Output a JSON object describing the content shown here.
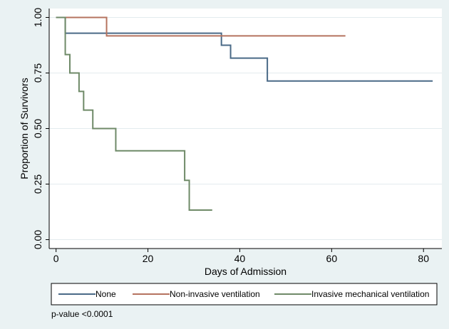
{
  "chart_data": {
    "type": "line",
    "step": true,
    "xlabel": "Days of Admission",
    "ylabel": "Proportion of Survivors",
    "xlim": [
      0,
      82
    ],
    "ylim": [
      0,
      1
    ],
    "x_ticks": [
      0,
      20,
      40,
      60,
      80
    ],
    "x_tick_labels": [
      "0",
      "20",
      "40",
      "60",
      "80"
    ],
    "y_ticks": [
      0,
      0.25,
      0.5,
      0.75,
      1
    ],
    "y_tick_labels": [
      "0.00",
      "0.25",
      "0.50",
      "0.75",
      "1.00"
    ],
    "grid": "horizontal",
    "legend_position": "bottom",
    "series": [
      {
        "name": "None",
        "color": "#4a6a87",
        "x": [
          0,
          2,
          36,
          38,
          46,
          82
        ],
        "y": [
          1,
          0.929,
          0.875,
          0.817,
          0.714,
          0.714
        ]
      },
      {
        "name": "Non-invasive ventilation",
        "color": "#b5735f",
        "x": [
          0,
          11,
          63
        ],
        "y": [
          1,
          0.917,
          0.917
        ]
      },
      {
        "name": "Invasive mechanical ventilation",
        "color": "#6f8a68",
        "x": [
          0,
          2,
          3,
          5,
          6,
          8,
          13,
          28,
          29,
          34
        ],
        "y": [
          1,
          0.833,
          0.75,
          0.667,
          0.583,
          0.5,
          0.4,
          0.267,
          0.133,
          0.133
        ]
      }
    ]
  },
  "annotation": "p-value <0.0001"
}
